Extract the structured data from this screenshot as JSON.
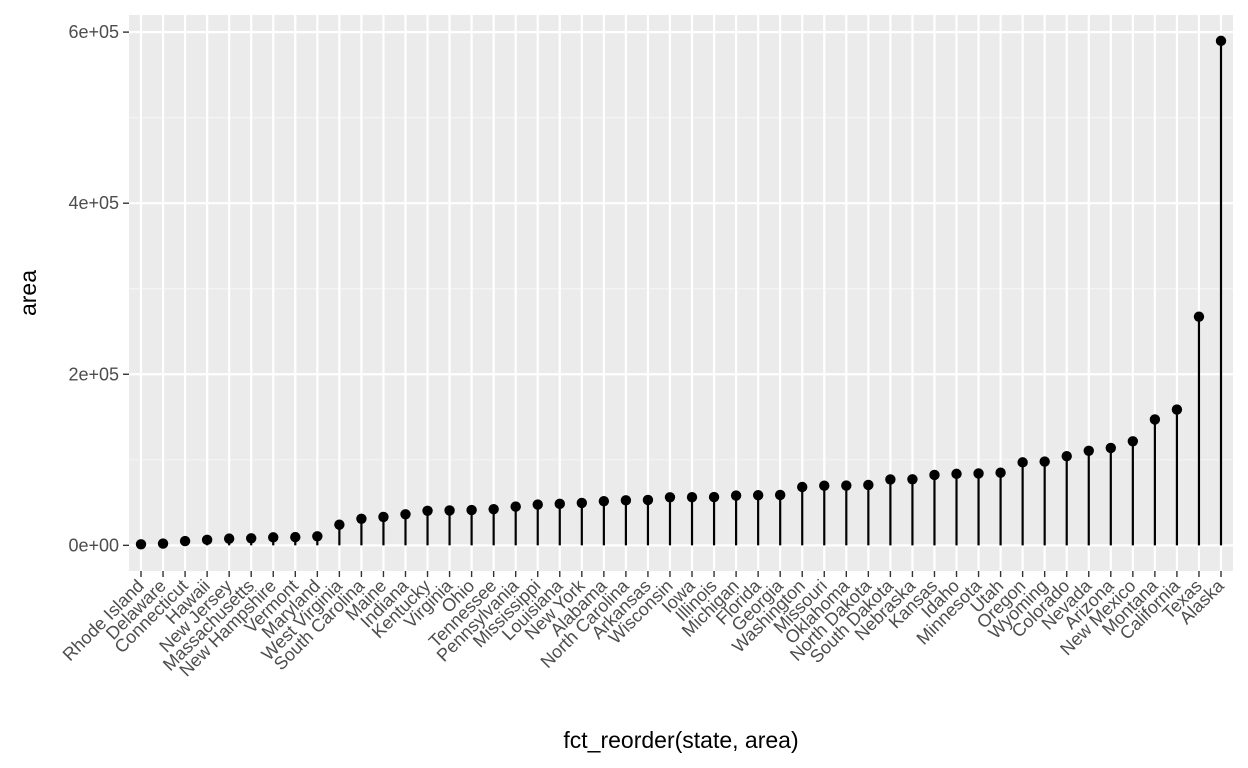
{
  "chart_data": {
    "type": "lollipop",
    "xlabel": "fct_reorder(state, area)",
    "ylabel": "area",
    "ylim": [
      -30000,
      620000
    ],
    "y_ticks": [
      0,
      200000,
      400000,
      600000
    ],
    "y_tick_labels": [
      "0e+00",
      "2e+05",
      "4e+05",
      "6e+05"
    ],
    "categories": [
      "Rhode Island",
      "Delaware",
      "Connecticut",
      "Hawaii",
      "New Jersey",
      "Massachusetts",
      "New Hampshire",
      "Vermont",
      "Maryland",
      "West Virginia",
      "South Carolina",
      "Maine",
      "Indiana",
      "Kentucky",
      "Virginia",
      "Ohio",
      "Tennessee",
      "Pennsylvania",
      "Mississippi",
      "Louisiana",
      "New York",
      "Alabama",
      "North Carolina",
      "Arkansas",
      "Wisconsin",
      "Iowa",
      "Illinois",
      "Michigan",
      "Florida",
      "Georgia",
      "Washington",
      "Missouri",
      "Oklahoma",
      "North Dakota",
      "South Dakota",
      "Nebraska",
      "Kansas",
      "Idaho",
      "Minnesota",
      "Utah",
      "Oregon",
      "Wyoming",
      "Colorado",
      "Nevada",
      "Arizona",
      "New Mexico",
      "Montana",
      "California",
      "Texas",
      "Alaska"
    ],
    "values": [
      1214,
      2057,
      5009,
      6450,
      7836,
      8257,
      9304,
      9609,
      10577,
      24181,
      31055,
      33215,
      36291,
      40395,
      40815,
      41222,
      42244,
      45333,
      47716,
      48523,
      49576,
      51609,
      52586,
      53104,
      56154,
      56290,
      56400,
      58216,
      58560,
      58876,
      68192,
      69686,
      69919,
      70665,
      77047,
      77227,
      82264,
      83557,
      84068,
      84916,
      96981,
      97914,
      104247,
      110540,
      113909,
      121666,
      147138,
      158693,
      267339,
      589757
    ],
    "colors": {
      "panel": "#ebebeb",
      "grid_major": "#ffffff",
      "grid_minor": "#f5f5f5",
      "mark": "#000000",
      "tick_text": "#4d4d4d"
    },
    "grid": true,
    "legend": "none"
  }
}
